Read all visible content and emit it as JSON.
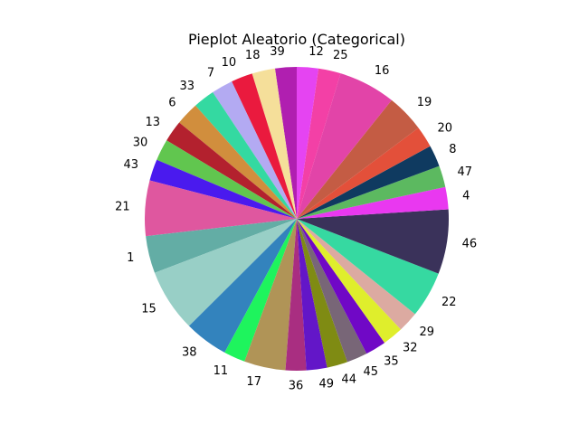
{
  "chart_data": {
    "type": "pie",
    "title": "Pieplot Aleatorio (Categorical)",
    "start_angle_deg": 90,
    "direction": "counterclockwise",
    "slices": [
      {
        "label": "39",
        "value": 2.6,
        "color": "#b01fb0"
      },
      {
        "label": "18",
        "value": 2.8,
        "color": "#f5df9a"
      },
      {
        "label": "10",
        "value": 2.6,
        "color": "#ea1a3e"
      },
      {
        "label": "7",
        "value": 2.6,
        "color": "#b3aaf2"
      },
      {
        "label": "33",
        "value": 2.6,
        "color": "#34d9a1"
      },
      {
        "label": "6",
        "value": 2.8,
        "color": "#d18e3d"
      },
      {
        "label": "13",
        "value": 2.6,
        "color": "#b3212e"
      },
      {
        "label": "30",
        "value": 2.6,
        "color": "#61c64f"
      },
      {
        "label": "43",
        "value": 2.6,
        "color": "#4a1aee"
      },
      {
        "label": "21",
        "value": 6.7,
        "color": "#df579f"
      },
      {
        "label": "1",
        "value": 4.5,
        "color": "#63ada5"
      },
      {
        "label": "15",
        "value": 7.6,
        "color": "#98cfc6"
      },
      {
        "label": "38",
        "value": 5.3,
        "color": "#3383bd"
      },
      {
        "label": "11",
        "value": 2.6,
        "color": "#1ef45d"
      },
      {
        "label": "17",
        "value": 5.0,
        "color": "#b09457"
      },
      {
        "label": "36",
        "value": 2.5,
        "color": "#a92e81"
      },
      {
        "label": "49",
        "value": 2.5,
        "color": "#6316c8"
      },
      {
        "label": "44",
        "value": 2.5,
        "color": "#7f8b13"
      },
      {
        "label": "45",
        "value": 2.5,
        "color": "#786677"
      },
      {
        "label": "35",
        "value": 2.5,
        "color": "#7008c6"
      },
      {
        "label": "32",
        "value": 2.5,
        "color": "#dfee2c"
      },
      {
        "label": "29",
        "value": 2.5,
        "color": "#dcaaa1"
      },
      {
        "label": "22",
        "value": 5.6,
        "color": "#36d9a1"
      },
      {
        "label": "46",
        "value": 7.8,
        "color": "#3a325a"
      },
      {
        "label": "4",
        "value": 2.7,
        "color": "#e938f0"
      },
      {
        "label": "47",
        "value": 2.6,
        "color": "#5cb960"
      },
      {
        "label": "8",
        "value": 2.6,
        "color": "#0f3a60"
      },
      {
        "label": "20",
        "value": 2.6,
        "color": "#e3503a"
      },
      {
        "label": "19",
        "value": 4.6,
        "color": "#c45c44"
      },
      {
        "label": "16",
        "value": 6.9,
        "color": "#e244a8"
      },
      {
        "label": "25",
        "value": 2.7,
        "color": "#f340a6"
      },
      {
        "label": "12",
        "value": 2.6,
        "color": "#e544f2"
      }
    ]
  }
}
